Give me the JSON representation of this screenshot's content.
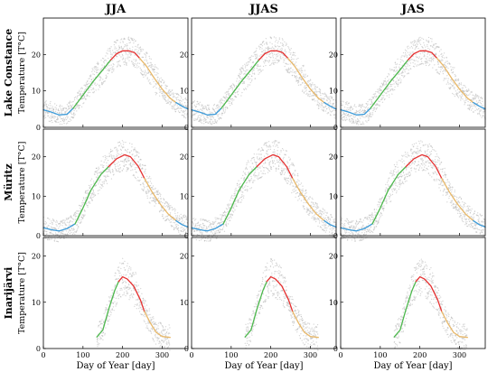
{
  "columns": [
    "JJA",
    "JJAS",
    "JAS"
  ],
  "rows": [
    "Lake Constance",
    "Müritz",
    "Inarijärvi"
  ],
  "ylabel": "Temperature [T°C]",
  "xlabel": "Day of Year [day]",
  "colors": {
    "winter": "#3a9ad9",
    "spring": "#4cb84c",
    "summer": "#e63030",
    "autumn": "#e8b869",
    "observations": "#b8b8b8",
    "axis": "#000000"
  },
  "chart_data": [
    {
      "type": "line",
      "lake": "Lake Constance",
      "xlim": [
        0,
        365
      ],
      "ylim": [
        0,
        30
      ],
      "xticks": [
        0,
        100,
        200,
        300
      ],
      "yticks": [
        0,
        10,
        20
      ],
      "series": [
        {
          "season": "winter",
          "x": [
            0,
            20,
            40,
            60,
            75
          ],
          "y": [
            4.8,
            4.2,
            3.4,
            3.6,
            5.2
          ]
        },
        {
          "season": "spring",
          "x": [
            75,
            100,
            125,
            150,
            170
          ],
          "y": [
            5.2,
            8.8,
            12.5,
            15.8,
            18.5
          ]
        },
        {
          "season": "summer",
          "x": [
            170,
            185,
            200,
            215,
            230,
            243
          ],
          "y": [
            18.5,
            20.2,
            21.0,
            21.0,
            20.5,
            19.0
          ]
        },
        {
          "season": "autumn",
          "x": [
            243,
            260,
            280,
            300,
            320,
            335
          ],
          "y": [
            19.0,
            16.8,
            13.5,
            10.5,
            8.0,
            6.8
          ]
        },
        {
          "season": "winter",
          "x": [
            335,
            350,
            365
          ],
          "y": [
            6.8,
            5.8,
            5.0
          ]
        }
      ]
    },
    {
      "type": "line",
      "lake": "Müritz",
      "xlim": [
        0,
        365
      ],
      "ylim": [
        0,
        27
      ],
      "xticks": [
        0,
        100,
        200,
        300
      ],
      "yticks": [
        0,
        10,
        20
      ],
      "series": [
        {
          "season": "winter",
          "x": [
            0,
            20,
            40,
            60,
            80
          ],
          "y": [
            2.0,
            1.5,
            1.2,
            1.8,
            3.0
          ]
        },
        {
          "season": "spring",
          "x": [
            80,
            100,
            120,
            145,
            165
          ],
          "y": [
            3.0,
            7.0,
            11.5,
            15.5,
            17.5
          ]
        },
        {
          "season": "summer",
          "x": [
            165,
            185,
            205,
            220,
            240,
            255
          ],
          "y": [
            17.5,
            19.5,
            20.5,
            20.0,
            17.5,
            14.5
          ]
        },
        {
          "season": "autumn",
          "x": [
            255,
            275,
            295,
            315,
            335
          ],
          "y": [
            14.5,
            11.0,
            8.0,
            5.5,
            3.8
          ]
        },
        {
          "season": "winter",
          "x": [
            335,
            350,
            365
          ],
          "y": [
            3.8,
            2.8,
            2.2
          ]
        }
      ]
    },
    {
      "type": "line",
      "lake": "Inarijärvi",
      "xlim": [
        0,
        365
      ],
      "ylim": [
        0,
        24
      ],
      "xticks": [
        0,
        100,
        200,
        300
      ],
      "yticks": [
        0,
        10,
        20
      ],
      "series": [
        {
          "season": "spring",
          "x": [
            135,
            150,
            165,
            180,
            190
          ],
          "y": [
            2.5,
            4.0,
            8.5,
            12.5,
            14.5
          ]
        },
        {
          "season": "summer",
          "x": [
            190,
            200,
            212,
            228,
            245,
            255
          ],
          "y": [
            14.5,
            15.5,
            15.0,
            13.5,
            10.5,
            8.0
          ]
        },
        {
          "season": "autumn",
          "x": [
            255,
            270,
            285,
            300,
            320
          ],
          "y": [
            8.0,
            5.5,
            3.5,
            2.6,
            2.4
          ]
        }
      ]
    }
  ]
}
